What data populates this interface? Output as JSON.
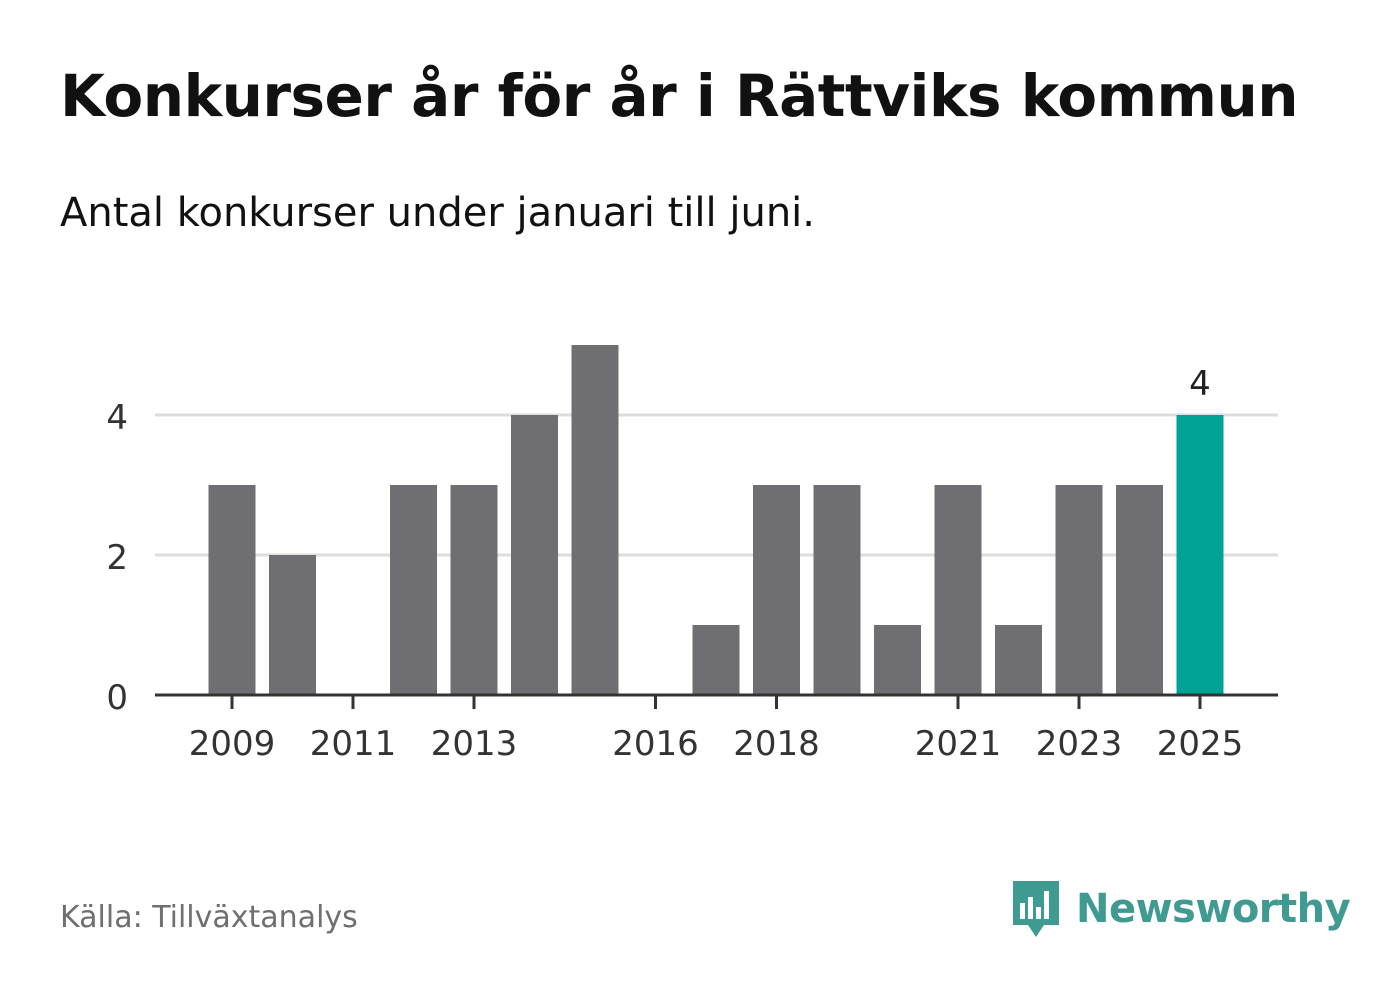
{
  "header": {
    "title": "Konkurser år för år i Rättviks kommun",
    "subtitle": "Antal konkurser under januari till juni."
  },
  "footer": {
    "source": "Källa: Tillväxtanalys",
    "brand": "Newsworthy"
  },
  "colors": {
    "bar": "#6f6e73",
    "highlight": "#00a396",
    "grid": "#dddddd",
    "axis": "#333333",
    "brand": "#3f9a92"
  },
  "chart_data": {
    "type": "bar",
    "categories": [
      "2009",
      "2010",
      "2011",
      "2012",
      "2013",
      "2014",
      "2015",
      "2016",
      "2017",
      "2018",
      "2019",
      "2020",
      "2021",
      "2022",
      "2023",
      "2024",
      "2025"
    ],
    "values": [
      3,
      2,
      0,
      3,
      3,
      4,
      5,
      0,
      1,
      3,
      3,
      1,
      3,
      1,
      3,
      3,
      4
    ],
    "x_tick_labels": [
      "2009",
      "2011",
      "2013",
      "2016",
      "2018",
      "2021",
      "2023",
      "2025"
    ],
    "y_ticks": [
      0,
      2,
      4
    ],
    "ylim": [
      0,
      5
    ],
    "highlight_category": "2025",
    "data_labels": [
      {
        "category": "2025",
        "text": "4"
      }
    ],
    "grid": true,
    "legend": "none"
  }
}
